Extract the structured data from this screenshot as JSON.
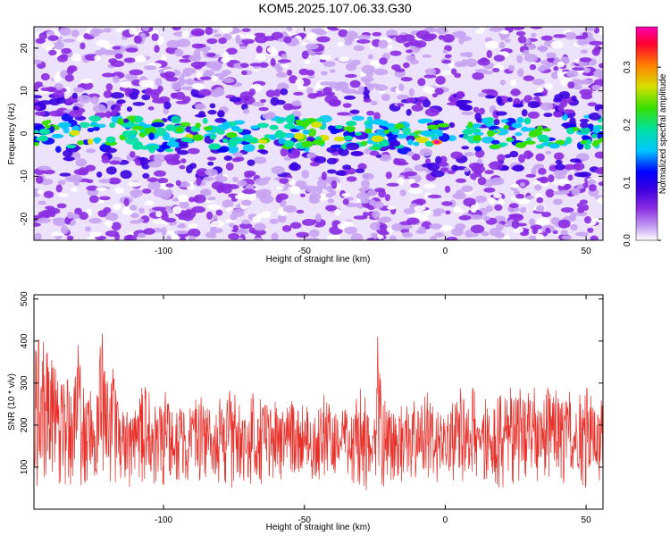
{
  "figure_title": "KOM5.2025.107.06.33.G30",
  "colors": {
    "snr_line": "#e8302a",
    "background": "#ffffff",
    "axes": "#000000"
  },
  "chart_data": [
    {
      "type": "heatmap",
      "title": "",
      "xlabel": "Height of straight line (km)",
      "ylabel": "Frequency (Hz)",
      "xlim": [
        -146,
        56
      ],
      "ylim": [
        -25,
        25
      ],
      "xticks": [
        -100,
        -50,
        0,
        50
      ],
      "yticks": [
        -20,
        -10,
        0,
        10,
        20
      ],
      "colorbar": {
        "label": "Normalized spectral amplitude",
        "range": [
          0.0,
          0.37
        ],
        "ticks": [
          0.0,
          0.1,
          0.2,
          0.3
        ],
        "colormap": [
          "#ffffff",
          "#c7a4f2",
          "#8a2be2",
          "#3a00e0",
          "#0000ff",
          "#00c8ff",
          "#00e0a0",
          "#38e000",
          "#d8e000",
          "#ff8000",
          "#ff0030",
          "#ff00b0"
        ]
      },
      "description_of_pattern": {
        "band_center_hz": 0,
        "band_halfwidth_hz": 4,
        "peak": {
          "x": -3,
          "y": -2,
          "value": 0.36
        }
      }
    },
    {
      "type": "line",
      "title": "",
      "xlabel": "Height of straight line (km)",
      "ylabel": "SNR (10 * v/v)",
      "xlim": [
        -146,
        56
      ],
      "ylim": [
        0,
        510
      ],
      "xticks": [
        -100,
        -50,
        0,
        50
      ],
      "yticks": [
        100,
        200,
        300,
        400,
        500
      ],
      "series": [
        {
          "color": "#e8302a",
          "x": [
            -146,
            -144,
            -142,
            -140,
            -138,
            -136,
            -134,
            -132,
            -130,
            -128,
            -126,
            -124,
            -122,
            -120,
            -118,
            -116,
            -114,
            -112,
            -110,
            -108,
            -106,
            -104,
            -102,
            -100,
            -98,
            -96,
            -94,
            -92,
            -90,
            -88,
            -86,
            -84,
            -82,
            -80,
            -78,
            -76,
            -74,
            -72,
            -70,
            -68,
            -66,
            -64,
            -62,
            -60,
            -58,
            -56,
            -54,
            -52,
            -50,
            -48,
            -46,
            -44,
            -42,
            -40,
            -38,
            -36,
            -34,
            -32,
            -30,
            -28,
            -26,
            -24,
            -22,
            -20,
            -18,
            -16,
            -14,
            -12,
            -10,
            -8,
            -6,
            -4,
            -2,
            0,
            2,
            4,
            6,
            8,
            10,
            12,
            14,
            16,
            18,
            20,
            22,
            24,
            26,
            28,
            30,
            32,
            34,
            36,
            38,
            40,
            42,
            44,
            46,
            48,
            50,
            52,
            54,
            56
          ],
          "upper": [
            380,
            510,
            360,
            430,
            330,
            350,
            380,
            310,
            430,
            300,
            350,
            290,
            440,
            330,
            380,
            260,
            270,
            250,
            260,
            290,
            340,
            260,
            250,
            280,
            300,
            250,
            270,
            250,
            240,
            290,
            310,
            260,
            250,
            270,
            250,
            300,
            260,
            250,
            240,
            300,
            270,
            280,
            250,
            260,
            270,
            250,
            300,
            260,
            250,
            240,
            270,
            260,
            300,
            250,
            240,
            270,
            260,
            250,
            300,
            260,
            240,
            420,
            280,
            260,
            250,
            250,
            240,
            270,
            260,
            290,
            300,
            270,
            260,
            250,
            260,
            270,
            300,
            260,
            330,
            260,
            270,
            280,
            300,
            310,
            330,
            290,
            300,
            280,
            310,
            300,
            260,
            330,
            300,
            290,
            310,
            280,
            260,
            300,
            290,
            280,
            240,
            300
          ],
          "lower": [
            60,
            40,
            80,
            30,
            70,
            50,
            60,
            40,
            60,
            50,
            70,
            30,
            80,
            60,
            50,
            70,
            60,
            40,
            80,
            60,
            70,
            50,
            60,
            40,
            80,
            60,
            50,
            70,
            60,
            40,
            80,
            60,
            70,
            50,
            60,
            40,
            80,
            60,
            50,
            70,
            60,
            40,
            80,
            60,
            70,
            50,
            60,
            40,
            80,
            60,
            50,
            70,
            60,
            40,
            80,
            60,
            70,
            50,
            60,
            40,
            80,
            60,
            50,
            70,
            60,
            40,
            80,
            60,
            70,
            50,
            60,
            40,
            80,
            60,
            50,
            70,
            60,
            40,
            80,
            60,
            70,
            50,
            60,
            40,
            80,
            60,
            50,
            70,
            60,
            40,
            80,
            60,
            70,
            50,
            60,
            40,
            80,
            60,
            50,
            70,
            60,
            40
          ]
        }
      ]
    }
  ]
}
